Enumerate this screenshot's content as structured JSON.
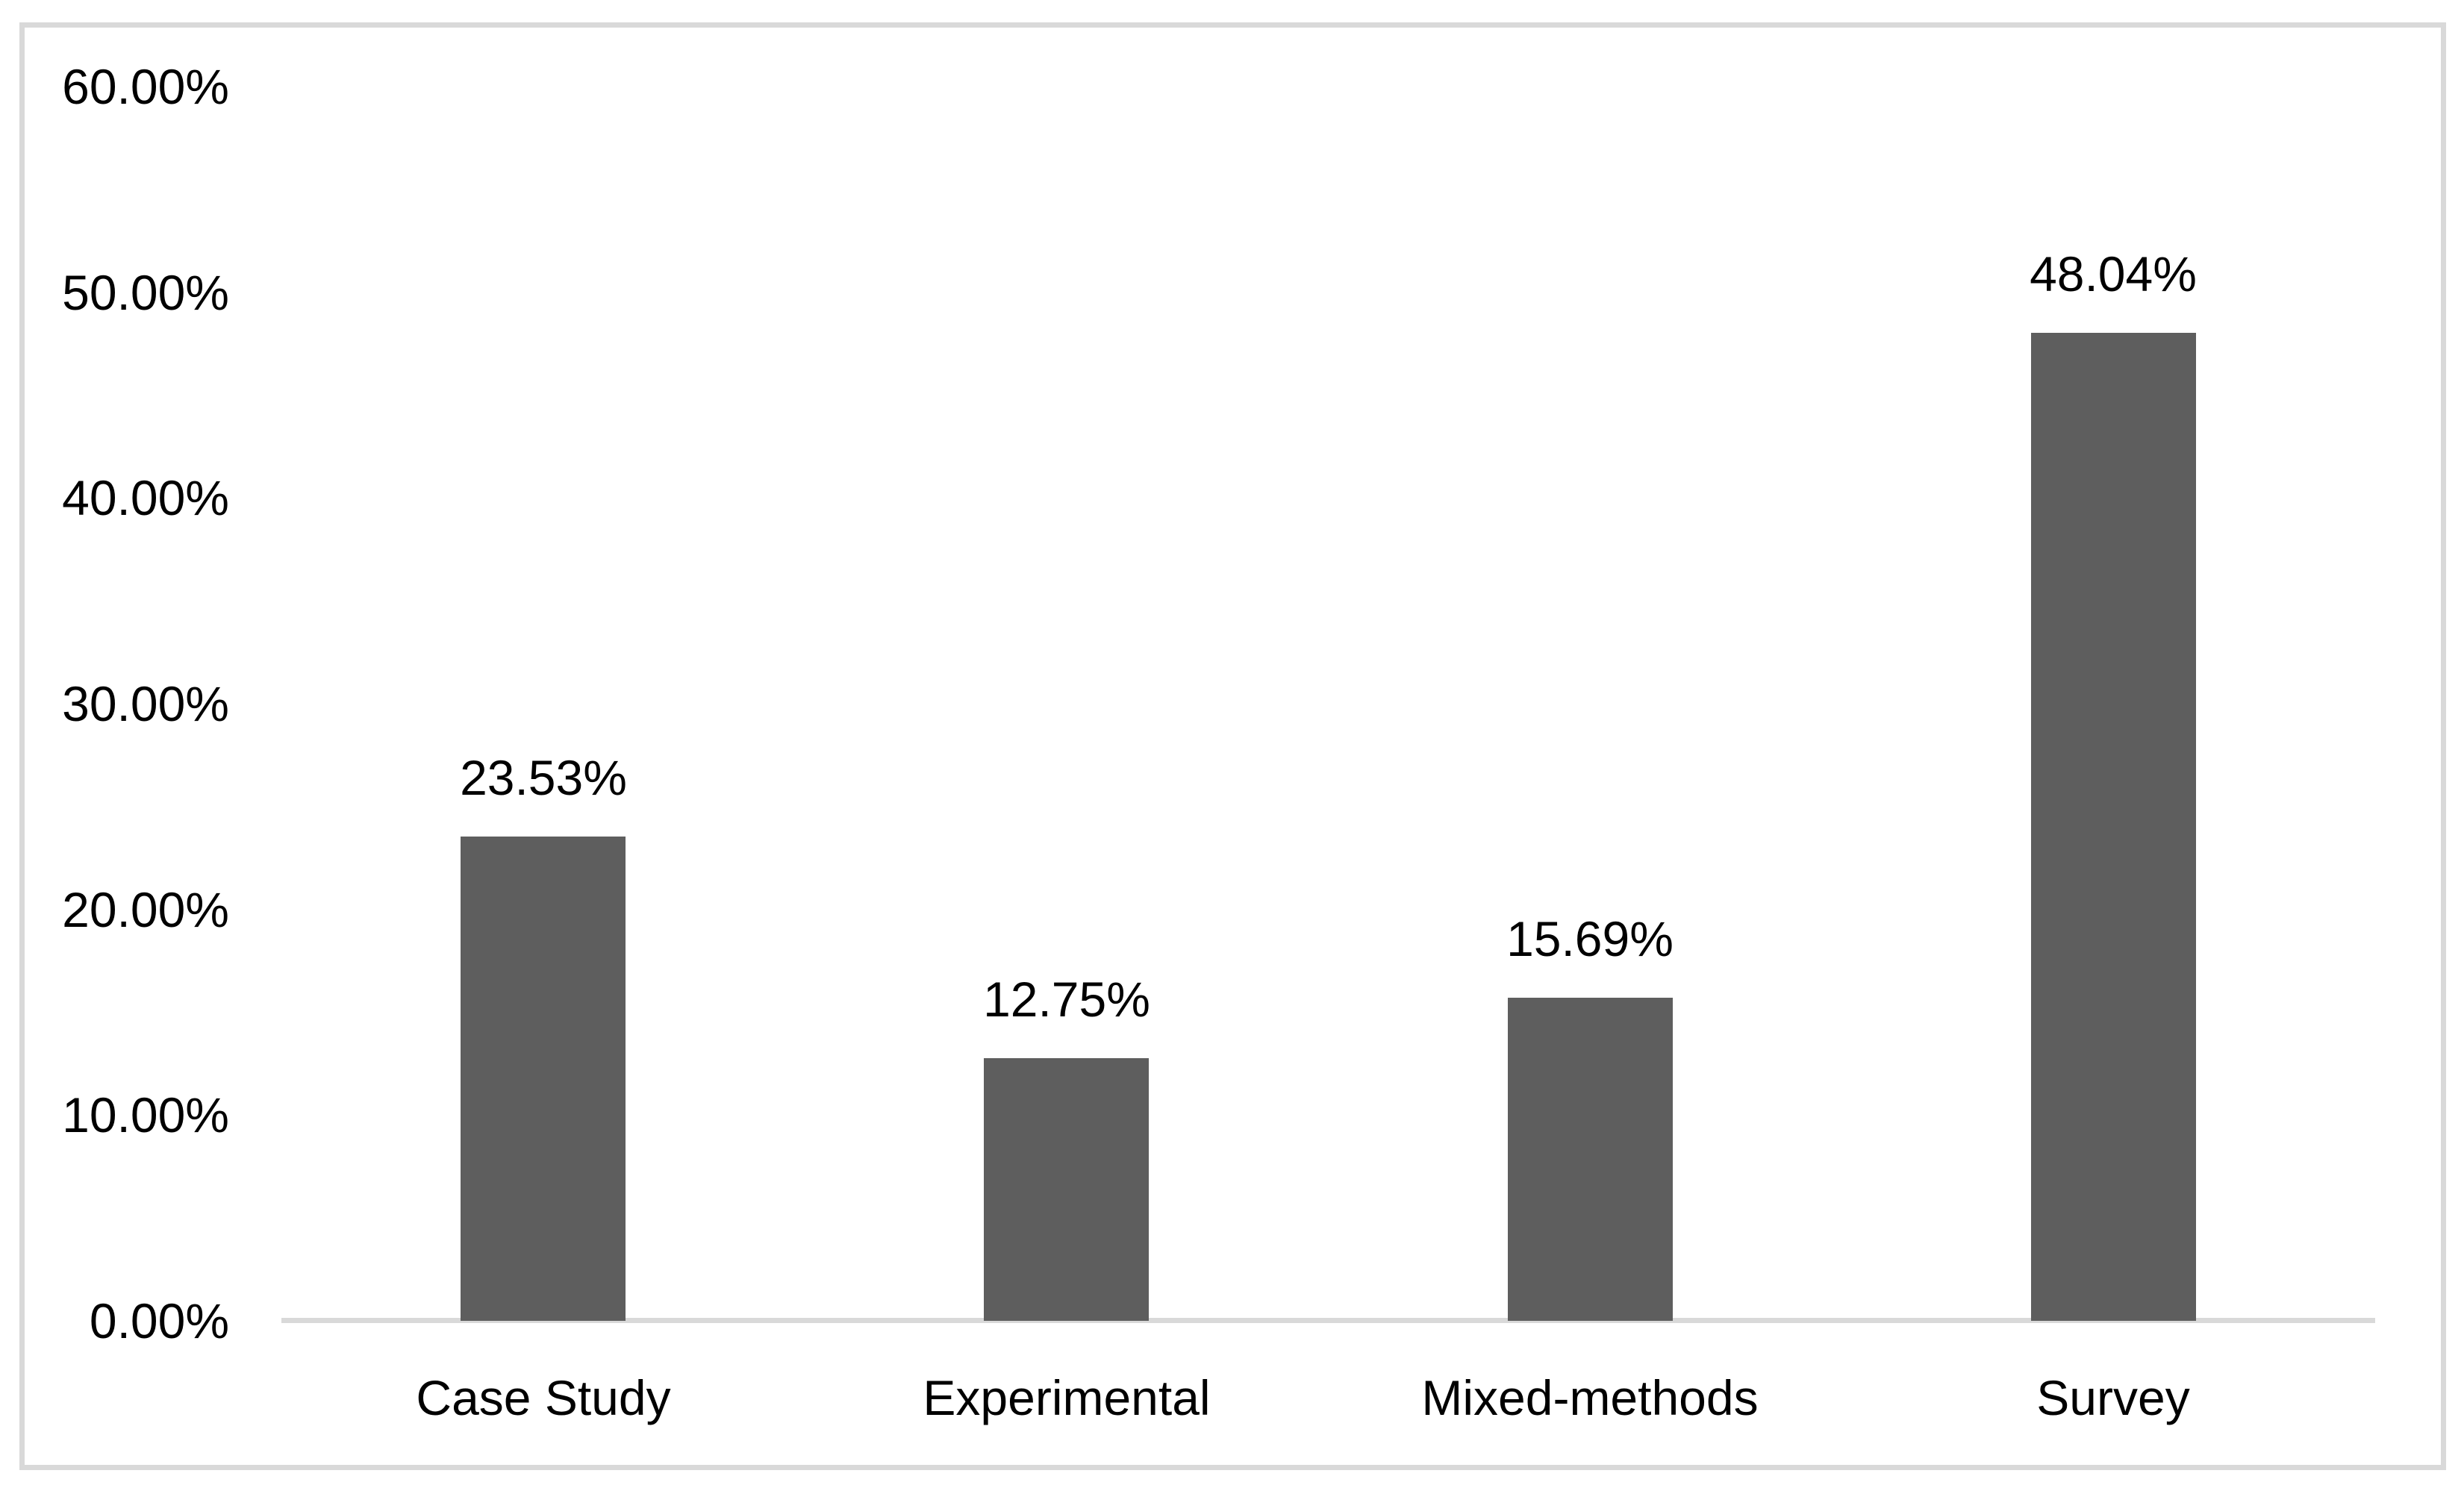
{
  "chart_data": {
    "type": "bar",
    "title": "",
    "xlabel": "",
    "ylabel": "",
    "categories": [
      "Case Study",
      "Experimental",
      "Mixed-methods",
      "Survey"
    ],
    "values": [
      23.53,
      12.75,
      15.69,
      48.04
    ],
    "data_labels": [
      "23.53%",
      "12.75%",
      "15.69%",
      "48.04%"
    ],
    "y_ticks": [
      {
        "value": 0,
        "label": "0.00%"
      },
      {
        "value": 10,
        "label": "10.00%"
      },
      {
        "value": 20,
        "label": "20.00%"
      },
      {
        "value": 30,
        "label": "30.00%"
      },
      {
        "value": 40,
        "label": "40.00%"
      },
      {
        "value": 50,
        "label": "50.00%"
      },
      {
        "value": 60,
        "label": "60.00%"
      }
    ],
    "ylim": [
      0,
      60
    ],
    "grid": false,
    "legend": false,
    "colors": {
      "bar_fill": "#5e5e5e",
      "axis_line": "#d9d9d9",
      "frame_border": "#d9d9d9",
      "text": "#000000",
      "background": "#ffffff"
    }
  }
}
